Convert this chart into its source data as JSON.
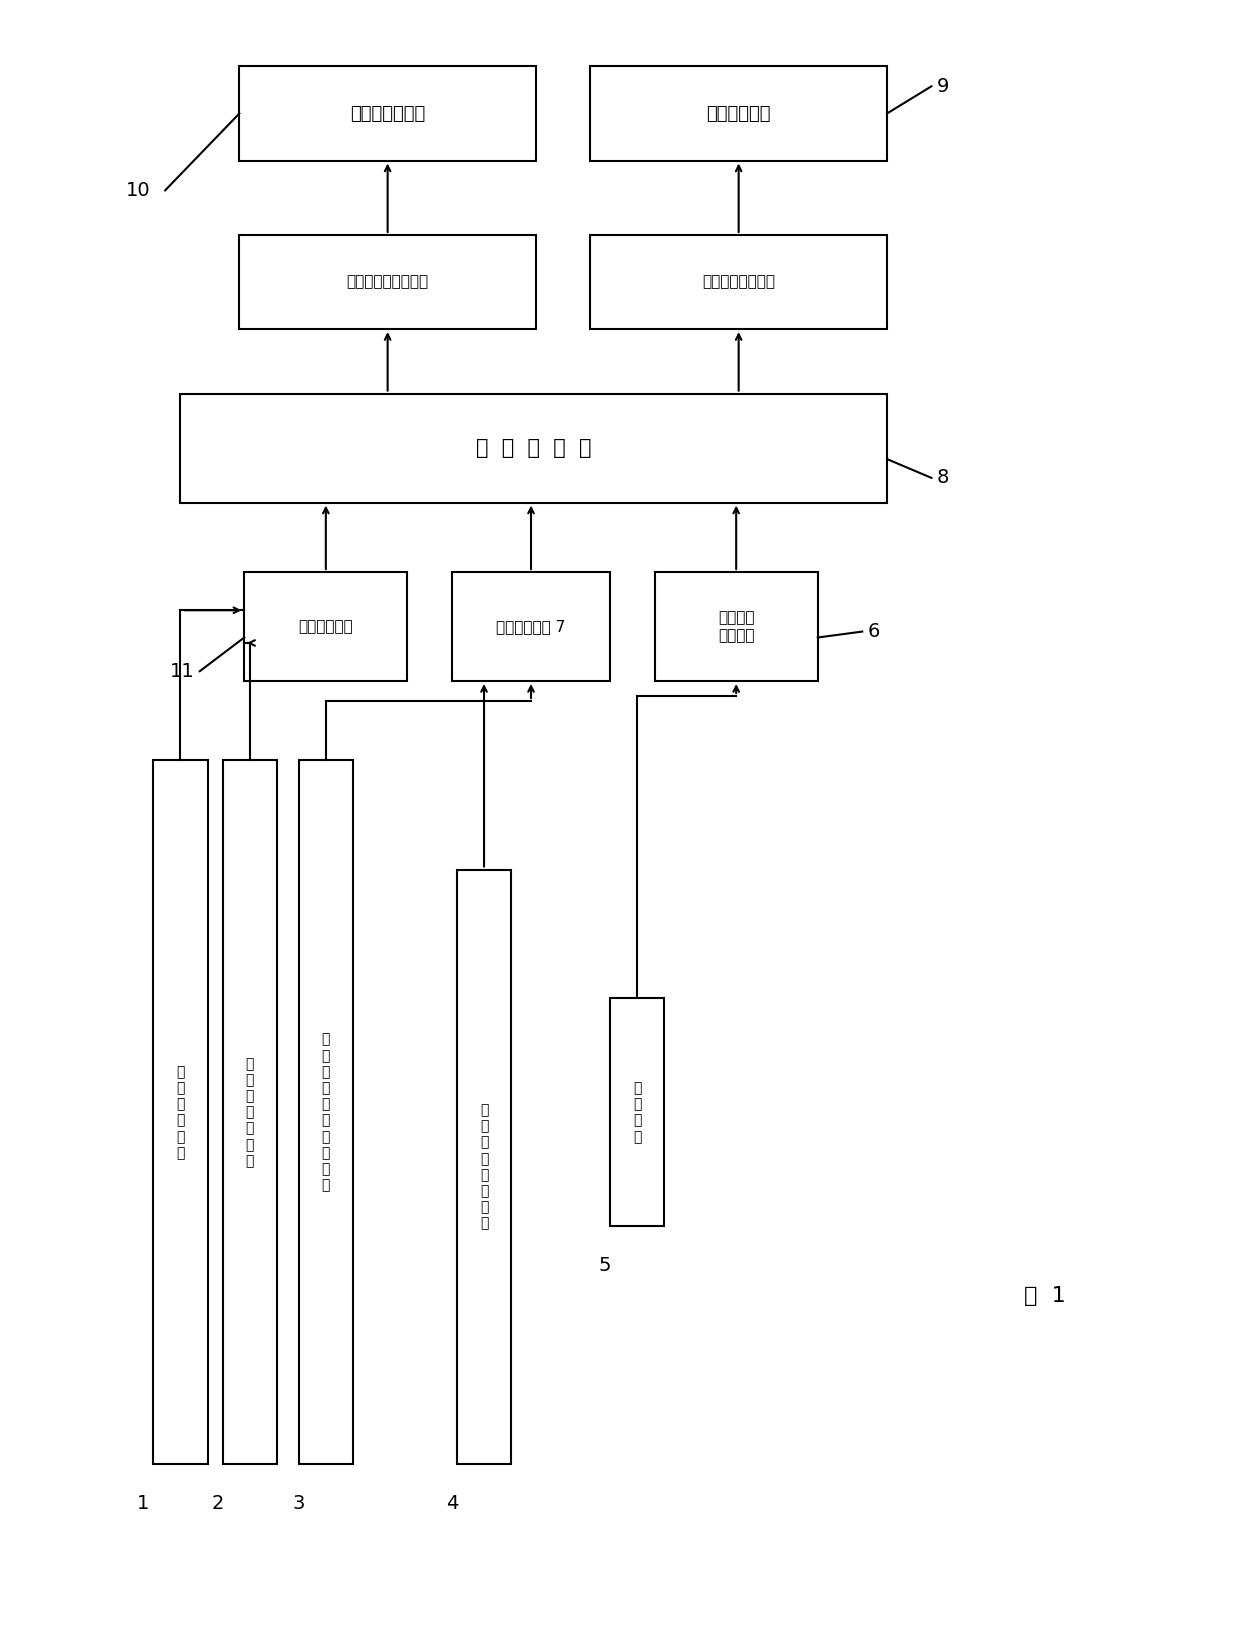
{
  "bg_color": "#ffffff",
  "fig_title": "图  1",
  "clutch_exec": {
    "label": "离合器执行机构"
  },
  "gear_exec": {
    "label": "换挡执行机构"
  },
  "clutch_drv": {
    "label": "离合器驱动控制单元"
  },
  "gear_drv": {
    "label": "换挡驱动控制单元"
  },
  "cpu": {
    "label": "处  理  器  单  元"
  },
  "sig_proc": {
    "label": "信号处理单元"
  },
  "sig_conv": {
    "label": "信号转换单元 7"
  },
  "ser_comm": {
    "label": "串行通讯\n接口单元"
  },
  "b1_label": "档\n位\n显\n示\n电\n路",
  "b2_label": "发\n动\n机\n脉\n冲\n线\n圈",
  "b3_label": "离\n合\n器\n顶\n杆\n位\n移\n传\n感\n器",
  "b4_label": "档\n位\n选\n择\n步\n发\n开\n关",
  "b5_label": "存\n贮\n单\n元",
  "num_labels": [
    "1",
    "2",
    "3",
    "4",
    "5",
    "6",
    "8",
    "9",
    "10",
    "11"
  ]
}
